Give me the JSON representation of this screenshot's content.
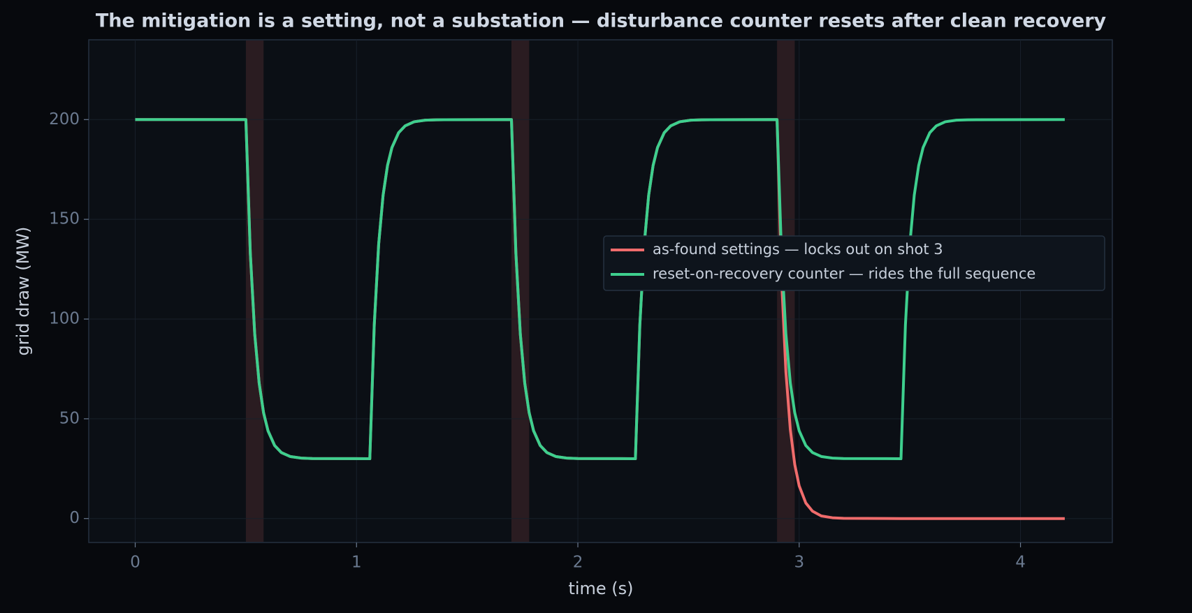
{
  "chart_data": {
    "type": "line",
    "title": "The mitigation is a setting, not a substation — disturbance counter resets after clean recovery",
    "x_label": "time (s)",
    "y_label": "grid draw (MW)",
    "x": [
      0,
      0.5,
      0.52,
      0.54,
      0.56,
      0.58,
      0.6,
      0.63,
      0.66,
      0.7,
      0.75,
      0.8,
      1.06,
      1.08,
      1.1,
      1.12,
      1.14,
      1.16,
      1.19,
      1.22,
      1.26,
      1.31,
      1.36,
      1.7,
      1.72,
      1.74,
      1.76,
      1.78,
      1.8,
      1.83,
      1.86,
      1.9,
      1.95,
      2.0,
      2.26,
      2.28,
      2.3,
      2.32,
      2.34,
      2.36,
      2.39,
      2.42,
      2.46,
      2.51,
      2.56,
      2.9,
      2.92,
      2.94,
      2.96,
      2.98,
      3.0,
      3.03,
      3.06,
      3.1,
      3.15,
      3.2,
      3.46,
      3.48,
      3.5,
      3.52,
      3.54,
      3.56,
      3.59,
      3.62,
      3.66,
      3.71,
      3.76,
      4.2
    ],
    "series": [
      {
        "name": "as-found settings — locks out on shot 3",
        "color": "#f06c6c",
        "values": [
          200,
          200,
          133.1,
          92.5,
          67.9,
          53.0,
          44.0,
          36.6,
          33.1,
          31.1,
          30.3,
          30.1,
          30,
          96.9,
          137.5,
          162.1,
          177.0,
          186.0,
          193.4,
          196.9,
          198.9,
          199.7,
          199.9,
          200,
          133.1,
          92.5,
          67.9,
          53.0,
          44.0,
          36.6,
          33.1,
          31.1,
          30.3,
          30.1,
          30,
          96.9,
          137.5,
          162.1,
          177.0,
          186.0,
          193.4,
          196.9,
          198.9,
          199.7,
          199.9,
          200,
          121.3,
          73.6,
          44.6,
          27.1,
          16.4,
          7.8,
          3.7,
          1.3,
          0.4,
          0.1,
          0,
          0,
          0,
          0,
          0,
          0,
          0,
          0,
          0,
          0,
          0,
          0
        ]
      },
      {
        "name": "reset-on-recovery counter — rides the full sequence",
        "color": "#3ecf8e",
        "values": [
          200,
          200,
          133.1,
          92.5,
          67.9,
          53.0,
          44.0,
          36.6,
          33.1,
          31.1,
          30.3,
          30.1,
          30,
          96.9,
          137.5,
          162.1,
          177.0,
          186.0,
          193.4,
          196.9,
          198.9,
          199.7,
          199.9,
          200,
          133.1,
          92.5,
          67.9,
          53.0,
          44.0,
          36.6,
          33.1,
          31.1,
          30.3,
          30.1,
          30,
          96.9,
          137.5,
          162.1,
          177.0,
          186.0,
          193.4,
          196.9,
          198.9,
          199.7,
          199.9,
          200,
          133.1,
          92.5,
          67.9,
          53.0,
          44.0,
          36.6,
          33.1,
          31.1,
          30.3,
          30.1,
          30,
          96.9,
          137.5,
          162.1,
          177.0,
          186.0,
          193.4,
          196.9,
          198.9,
          199.7,
          199.9,
          200
        ]
      }
    ],
    "shaded_spans": [
      [
        0.5,
        0.58
      ],
      [
        1.7,
        1.78
      ],
      [
        2.9,
        2.98
      ]
    ],
    "span_color": "#2a1c21",
    "xlim": [
      -0.21,
      4.415
    ],
    "xticks": [
      0,
      1,
      2,
      3,
      4
    ],
    "ylim": [
      -12,
      240
    ],
    "yticks": [
      0,
      50,
      100,
      150,
      200
    ],
    "grid": true,
    "legend": "center right"
  }
}
